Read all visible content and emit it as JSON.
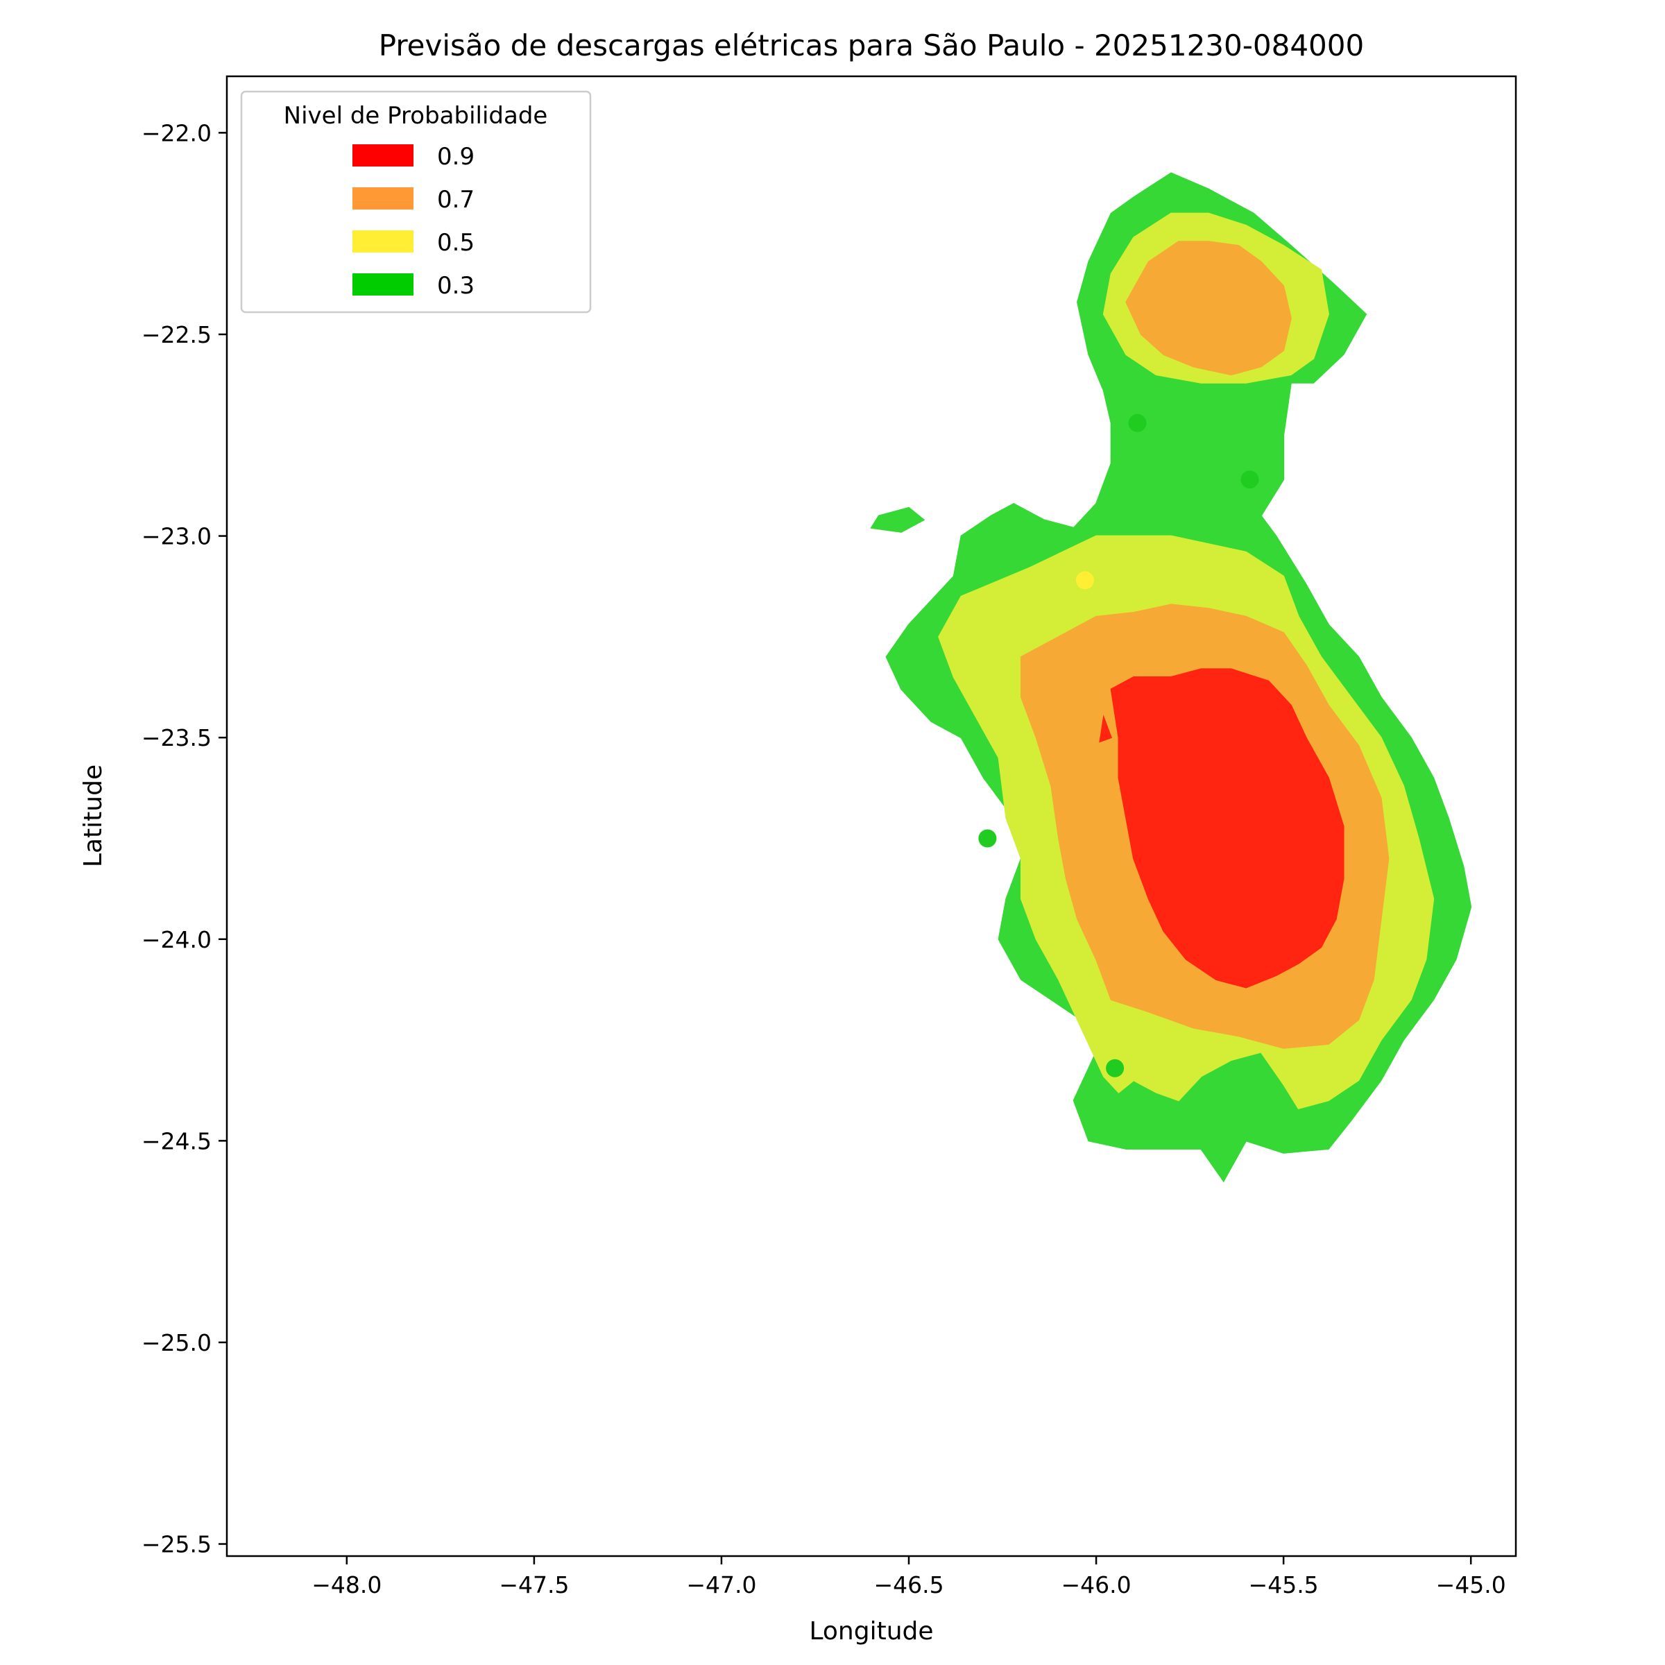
{
  "chart_data": {
    "type": "contour",
    "title": "Previsão de descargas elétricas para São Paulo - 20251230-084000",
    "xlabel": "Longitude",
    "ylabel": "Latitude",
    "xlim": [
      -48.32,
      -44.88
    ],
    "ylim": [
      -25.53,
      -21.86
    ],
    "x_ticks": [
      -48.0,
      -47.5,
      -47.0,
      -46.5,
      -46.0,
      -45.5,
      -45.0
    ],
    "y_ticks": [
      -22.0,
      -22.5,
      -23.0,
      -23.5,
      -24.0,
      -24.5,
      -25.0,
      -25.5
    ],
    "x_tick_labels": [
      "−48.0",
      "−47.5",
      "−47.0",
      "−46.5",
      "−46.0",
      "−45.5",
      "−45.0"
    ],
    "y_tick_labels": [
      "−22.0",
      "−22.5",
      "−23.0",
      "−23.5",
      "−24.0",
      "−24.5",
      "−25.0",
      "−25.5"
    ],
    "grid": false,
    "legend": {
      "title": "Nivel de Probabilidade",
      "placement": "top-left",
      "entries": [
        {
          "label": "0.9",
          "color": "#ff0000"
        },
        {
          "label": "0.7",
          "color": "#ff9933"
        },
        {
          "label": "0.5",
          "color": "#ffee33"
        },
        {
          "label": "0.3",
          "color": "#00cc00"
        }
      ]
    },
    "levels": [
      {
        "level": 0.3,
        "color": "#35d835",
        "regions": [
          [
            [
              -46.02,
              -22.32
            ],
            [
              -45.96,
              -22.2
            ],
            [
              -45.9,
              -22.16
            ],
            [
              -45.8,
              -22.1
            ],
            [
              -45.7,
              -22.14
            ],
            [
              -45.58,
              -22.2
            ],
            [
              -45.48,
              -22.28
            ],
            [
              -45.36,
              -22.38
            ],
            [
              -45.28,
              -22.45
            ],
            [
              -45.34,
              -22.55
            ],
            [
              -45.42,
              -22.62
            ],
            [
              -45.48,
              -22.62
            ],
            [
              -45.5,
              -22.75
            ],
            [
              -45.5,
              -22.86
            ],
            [
              -45.56,
              -22.95
            ],
            [
              -45.52,
              -23.0
            ],
            [
              -45.48,
              -23.06
            ],
            [
              -45.44,
              -23.12
            ],
            [
              -45.38,
              -23.22
            ],
            [
              -45.3,
              -23.3
            ],
            [
              -45.24,
              -23.4
            ],
            [
              -45.16,
              -23.5
            ],
            [
              -45.1,
              -23.6
            ],
            [
              -45.06,
              -23.7
            ],
            [
              -45.02,
              -23.82
            ],
            [
              -45.0,
              -23.92
            ],
            [
              -45.04,
              -24.05
            ],
            [
              -45.1,
              -24.15
            ],
            [
              -45.18,
              -24.25
            ],
            [
              -45.24,
              -24.35
            ],
            [
              -45.32,
              -24.45
            ],
            [
              -45.38,
              -24.52
            ],
            [
              -45.5,
              -24.53
            ],
            [
              -45.6,
              -24.5
            ],
            [
              -45.66,
              -24.6
            ],
            [
              -45.72,
              -24.52
            ],
            [
              -45.82,
              -24.52
            ],
            [
              -45.92,
              -24.52
            ],
            [
              -46.02,
              -24.5
            ],
            [
              -46.06,
              -24.4
            ],
            [
              -46.0,
              -24.28
            ],
            [
              -46.04,
              -24.2
            ],
            [
              -46.12,
              -24.15
            ],
            [
              -46.2,
              -24.1
            ],
            [
              -46.26,
              -24.0
            ],
            [
              -46.24,
              -23.9
            ],
            [
              -46.2,
              -23.8
            ],
            [
              -46.22,
              -23.7
            ],
            [
              -46.3,
              -23.6
            ],
            [
              -46.36,
              -23.5
            ],
            [
              -46.44,
              -23.46
            ],
            [
              -46.52,
              -23.38
            ],
            [
              -46.56,
              -23.3
            ],
            [
              -46.5,
              -23.22
            ],
            [
              -46.44,
              -23.16
            ],
            [
              -46.38,
              -23.1
            ],
            [
              -46.36,
              -23.0
            ],
            [
              -46.28,
              -22.95
            ],
            [
              -46.22,
              -22.92
            ],
            [
              -46.14,
              -22.96
            ],
            [
              -46.06,
              -22.98
            ],
            [
              -46.0,
              -22.92
            ],
            [
              -45.96,
              -22.82
            ],
            [
              -45.96,
              -22.72
            ],
            [
              -45.98,
              -22.64
            ],
            [
              -46.02,
              -22.55
            ],
            [
              -46.05,
              -22.42
            ]
          ],
          [
            [
              -46.58,
              -22.95
            ],
            [
              -46.5,
              -22.93
            ],
            [
              -46.46,
              -22.96
            ],
            [
              -46.52,
              -22.99
            ],
            [
              -46.6,
              -22.98
            ]
          ]
        ]
      },
      {
        "level": 0.5,
        "color": "#d4ee38",
        "regions": [
          [
            [
              -45.96,
              -22.35
            ],
            [
              -45.9,
              -22.26
            ],
            [
              -45.8,
              -22.2
            ],
            [
              -45.7,
              -22.2
            ],
            [
              -45.6,
              -22.23
            ],
            [
              -45.5,
              -22.28
            ],
            [
              -45.4,
              -22.34
            ],
            [
              -45.38,
              -22.45
            ],
            [
              -45.42,
              -22.56
            ],
            [
              -45.48,
              -22.6
            ],
            [
              -45.6,
              -22.62
            ],
            [
              -45.72,
              -22.62
            ],
            [
              -45.84,
              -22.6
            ],
            [
              -45.92,
              -22.55
            ],
            [
              -45.98,
              -22.45
            ]
          ],
          [
            [
              -46.18,
              -23.08
            ],
            [
              -46.0,
              -23.0
            ],
            [
              -45.8,
              -23.0
            ],
            [
              -45.6,
              -23.04
            ],
            [
              -45.5,
              -23.1
            ],
            [
              -45.46,
              -23.2
            ],
            [
              -45.4,
              -23.3
            ],
            [
              -45.32,
              -23.4
            ],
            [
              -45.24,
              -23.5
            ],
            [
              -45.18,
              -23.62
            ],
            [
              -45.14,
              -23.75
            ],
            [
              -45.1,
              -23.9
            ],
            [
              -45.12,
              -24.05
            ],
            [
              -45.16,
              -24.15
            ],
            [
              -45.24,
              -24.25
            ],
            [
              -45.3,
              -24.35
            ],
            [
              -45.38,
              -24.4
            ],
            [
              -45.46,
              -24.42
            ],
            [
              -45.5,
              -24.36
            ],
            [
              -45.56,
              -24.28
            ],
            [
              -45.64,
              -24.3
            ],
            [
              -45.72,
              -24.34
            ],
            [
              -45.78,
              -24.4
            ],
            [
              -45.84,
              -24.38
            ],
            [
              -45.9,
              -24.35
            ],
            [
              -45.94,
              -24.38
            ],
            [
              -45.98,
              -24.34
            ],
            [
              -46.04,
              -24.22
            ],
            [
              -46.1,
              -24.1
            ],
            [
              -46.16,
              -24.0
            ],
            [
              -46.2,
              -23.9
            ],
            [
              -46.2,
              -23.8
            ],
            [
              -46.24,
              -23.7
            ],
            [
              -46.26,
              -23.55
            ],
            [
              -46.32,
              -23.45
            ],
            [
              -46.38,
              -23.35
            ],
            [
              -46.42,
              -23.25
            ],
            [
              -46.36,
              -23.15
            ]
          ]
        ]
      },
      {
        "level": 0.7,
        "color": "#f6aa35",
        "regions": [
          [
            [
              -45.92,
              -22.42
            ],
            [
              -45.86,
              -22.32
            ],
            [
              -45.78,
              -22.27
            ],
            [
              -45.7,
              -22.27
            ],
            [
              -45.62,
              -22.28
            ],
            [
              -45.56,
              -22.32
            ],
            [
              -45.5,
              -22.38
            ],
            [
              -45.48,
              -22.46
            ],
            [
              -45.5,
              -22.54
            ],
            [
              -45.56,
              -22.58
            ],
            [
              -45.64,
              -22.6
            ],
            [
              -45.74,
              -22.58
            ],
            [
              -45.82,
              -22.55
            ],
            [
              -45.88,
              -22.5
            ]
          ],
          [
            [
              -46.2,
              -23.3
            ],
            [
              -46.1,
              -23.25
            ],
            [
              -46.0,
              -23.2
            ],
            [
              -45.9,
              -23.19
            ],
            [
              -45.8,
              -23.17
            ],
            [
              -45.7,
              -23.18
            ],
            [
              -45.6,
              -23.2
            ],
            [
              -45.5,
              -23.24
            ],
            [
              -45.44,
              -23.32
            ],
            [
              -45.38,
              -23.42
            ],
            [
              -45.3,
              -23.52
            ],
            [
              -45.24,
              -23.65
            ],
            [
              -45.22,
              -23.8
            ],
            [
              -45.24,
              -23.95
            ],
            [
              -45.26,
              -24.1
            ],
            [
              -45.3,
              -24.2
            ],
            [
              -45.38,
              -24.26
            ],
            [
              -45.5,
              -24.27
            ],
            [
              -45.62,
              -24.24
            ],
            [
              -45.74,
              -24.22
            ],
            [
              -45.86,
              -24.18
            ],
            [
              -45.96,
              -24.15
            ],
            [
              -46.0,
              -24.05
            ],
            [
              -46.05,
              -23.95
            ],
            [
              -46.08,
              -23.85
            ],
            [
              -46.1,
              -23.75
            ],
            [
              -46.12,
              -23.62
            ],
            [
              -46.16,
              -23.5
            ],
            [
              -46.2,
              -23.4
            ]
          ]
        ]
      },
      {
        "level": 0.9,
        "color": "#ff2510",
        "regions": [
          [
            [
              -45.96,
              -23.38
            ],
            [
              -45.9,
              -23.35
            ],
            [
              -45.8,
              -23.35
            ],
            [
              -45.72,
              -23.33
            ],
            [
              -45.64,
              -23.33
            ],
            [
              -45.54,
              -23.36
            ],
            [
              -45.48,
              -23.42
            ],
            [
              -45.44,
              -23.5
            ],
            [
              -45.38,
              -23.6
            ],
            [
              -45.34,
              -23.72
            ],
            [
              -45.34,
              -23.85
            ],
            [
              -45.36,
              -23.95
            ],
            [
              -45.4,
              -24.02
            ],
            [
              -45.46,
              -24.06
            ],
            [
              -45.52,
              -24.09
            ],
            [
              -45.6,
              -24.12
            ],
            [
              -45.68,
              -24.1
            ],
            [
              -45.76,
              -24.05
            ],
            [
              -45.82,
              -23.98
            ],
            [
              -45.86,
              -23.9
            ],
            [
              -45.9,
              -23.8
            ],
            [
              -45.92,
              -23.7
            ],
            [
              -45.94,
              -23.6
            ],
            [
              -45.94,
              -23.5
            ]
          ],
          [
            [
              -45.98,
              -23.45
            ],
            [
              -45.96,
              -23.5
            ],
            [
              -45.99,
              -23.51
            ]
          ]
        ]
      }
    ],
    "points": [
      {
        "x": -45.89,
        "y": -22.72,
        "color": "#1fcc1f"
      },
      {
        "x": -45.59,
        "y": -22.86,
        "color": "#1fcc1f"
      },
      {
        "x": -46.03,
        "y": -23.11,
        "color": "#ffee33"
      },
      {
        "x": -46.29,
        "y": -23.75,
        "color": "#1fcc1f"
      },
      {
        "x": -45.95,
        "y": -24.32,
        "color": "#1fcc1f"
      }
    ]
  }
}
